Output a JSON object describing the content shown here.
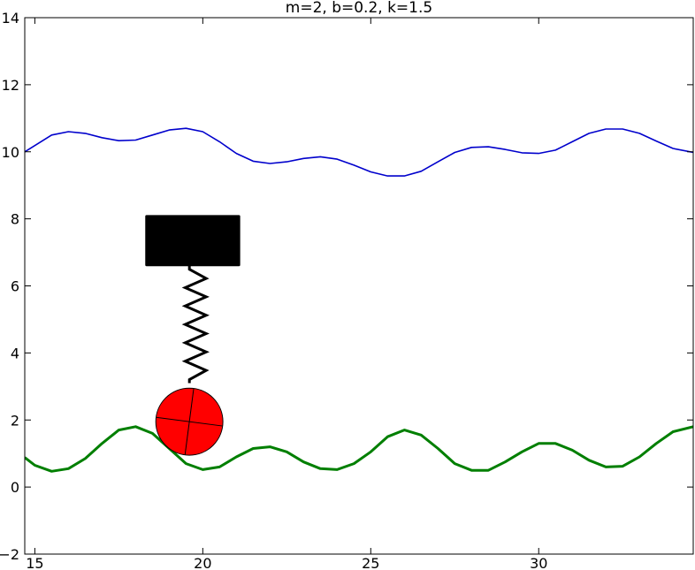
{
  "chart_data": {
    "type": "line",
    "title": "m=2, b=0.2, k=1.5",
    "xlabel": "",
    "ylabel": "",
    "xlim": [
      14.7,
      34.6
    ],
    "ylim": [
      -2,
      14
    ],
    "xticks": [
      15,
      20,
      25,
      30
    ],
    "yticks": [
      -2,
      0,
      2,
      4,
      6,
      8,
      10,
      12,
      14
    ],
    "xtick_labels": [
      "15",
      "20",
      "25",
      "30"
    ],
    "ytick_labels": [
      "−2",
      "0",
      "2",
      "4",
      "6",
      "8",
      "10",
      "12",
      "14"
    ],
    "grid": false,
    "series": [
      {
        "color": "#0000cc",
        "x": [
          14.7,
          15.5,
          16.0,
          16.5,
          17.0,
          17.5,
          18.0,
          18.5,
          19.0,
          19.5,
          20.0,
          20.5,
          21.0,
          21.5,
          22.0,
          22.5,
          23.0,
          23.5,
          24.0,
          24.5,
          25.0,
          25.5,
          26.0,
          26.5,
          27.0,
          27.5,
          28.0,
          28.5,
          29.0,
          29.5,
          30.0,
          30.5,
          31.0,
          31.5,
          32.0,
          32.5,
          33.0,
          33.5,
          34.0,
          34.6
        ],
        "y": [
          10.0,
          10.5,
          10.6,
          10.55,
          10.42,
          10.33,
          10.35,
          10.5,
          10.65,
          10.7,
          10.6,
          10.3,
          9.95,
          9.72,
          9.65,
          9.7,
          9.8,
          9.85,
          9.78,
          9.6,
          9.4,
          9.28,
          9.28,
          9.42,
          9.7,
          9.98,
          10.13,
          10.15,
          10.07,
          9.97,
          9.95,
          10.05,
          10.3,
          10.55,
          10.68,
          10.68,
          10.55,
          10.32,
          10.1,
          9.98
        ]
      },
      {
        "color": "#007f00",
        "x": [
          14.7,
          15.0,
          15.5,
          16.0,
          16.5,
          17.0,
          17.5,
          18.0,
          18.5,
          19.0,
          19.5,
          20.0,
          20.5,
          21.0,
          21.5,
          22.0,
          22.5,
          23.0,
          23.5,
          24.0,
          24.5,
          25.0,
          25.5,
          26.0,
          26.5,
          27.0,
          27.5,
          28.0,
          28.5,
          29.0,
          29.5,
          30.0,
          30.5,
          31.0,
          31.5,
          32.0,
          32.5,
          33.0,
          33.5,
          34.0,
          34.6
        ],
        "y": [
          0.88,
          0.65,
          0.47,
          0.55,
          0.85,
          1.3,
          1.7,
          1.8,
          1.6,
          1.15,
          0.7,
          0.52,
          0.6,
          0.9,
          1.15,
          1.2,
          1.05,
          0.75,
          0.55,
          0.52,
          0.7,
          1.05,
          1.5,
          1.7,
          1.55,
          1.15,
          0.7,
          0.5,
          0.5,
          0.75,
          1.05,
          1.3,
          1.3,
          1.1,
          0.8,
          0.6,
          0.62,
          0.9,
          1.3,
          1.65,
          1.8
        ]
      }
    ],
    "annotations": {
      "block": {
        "x": [
          18.3,
          21.1
        ],
        "y": [
          6.6,
          8.1
        ],
        "color": "#000000"
      },
      "spring": {
        "x": 19.6,
        "y_top": 6.6,
        "y_bottom": 3.1,
        "coils": 6,
        "color": "#000000"
      },
      "wheel": {
        "center_x": 19.6,
        "center_y": 1.95,
        "radius_y": 1.0,
        "color": "#ff0000"
      }
    }
  }
}
